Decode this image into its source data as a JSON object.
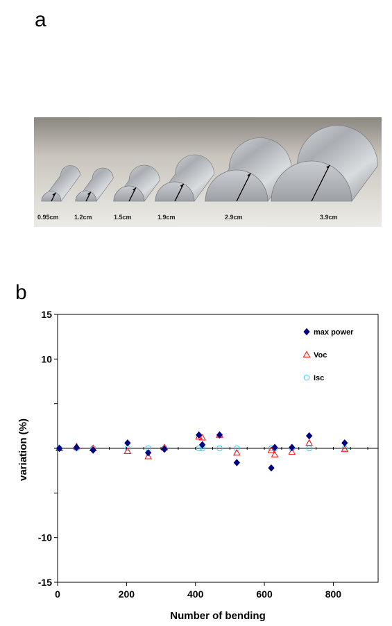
{
  "panels": {
    "a": "a",
    "b": "b"
  },
  "photo": {
    "labels": [
      "0.95cm",
      "1.2cm",
      "1.5cm",
      "1.9cm",
      "2.9cm",
      "3.9cm"
    ]
  },
  "chart_data": {
    "type": "scatter",
    "xlabel": "Number of bending",
    "ylabel": "variation (%)",
    "xlim": [
      0,
      930
    ],
    "ylim": [
      -15,
      15
    ],
    "x_ticks": [
      0,
      200,
      400,
      600,
      800
    ],
    "y_ticks": [
      15,
      10,
      -10,
      -15
    ],
    "grid": false,
    "legend_position": "top-right",
    "series": [
      {
        "name": "max power",
        "marker": "diamond",
        "color": "#000080",
        "x": [
          5,
          55,
          103,
          203,
          263,
          310,
          410,
          420,
          470,
          520,
          620,
          630,
          680,
          730,
          833
        ],
        "y": [
          0.0,
          0.1,
          -0.2,
          0.6,
          -0.5,
          -0.1,
          1.5,
          0.4,
          1.5,
          -1.6,
          -2.2,
          0.1,
          0.1,
          1.4,
          0.6
        ]
      },
      {
        "name": "Voc",
        "marker": "triangle",
        "color": "#ff0000",
        "x": [
          5,
          55,
          103,
          203,
          263,
          310,
          410,
          420,
          470,
          520,
          620,
          630,
          680,
          730,
          833
        ],
        "y": [
          0.0,
          0.2,
          0.0,
          -0.3,
          -0.9,
          0.1,
          1.3,
          1.2,
          1.5,
          -0.5,
          -0.2,
          -0.7,
          -0.4,
          0.6,
          -0.1
        ]
      },
      {
        "name": "Isc",
        "marker": "circle",
        "color": "#33ccff",
        "x": [
          5,
          55,
          103,
          203,
          263,
          310,
          410,
          420,
          470,
          520,
          620,
          630,
          680,
          730,
          833
        ],
        "y": [
          0.0,
          0.0,
          0.0,
          0.0,
          0.0,
          0.0,
          0.0,
          0.0,
          0.0,
          0.0,
          0.0,
          0.0,
          0.0,
          0.0,
          0.0
        ]
      }
    ]
  }
}
